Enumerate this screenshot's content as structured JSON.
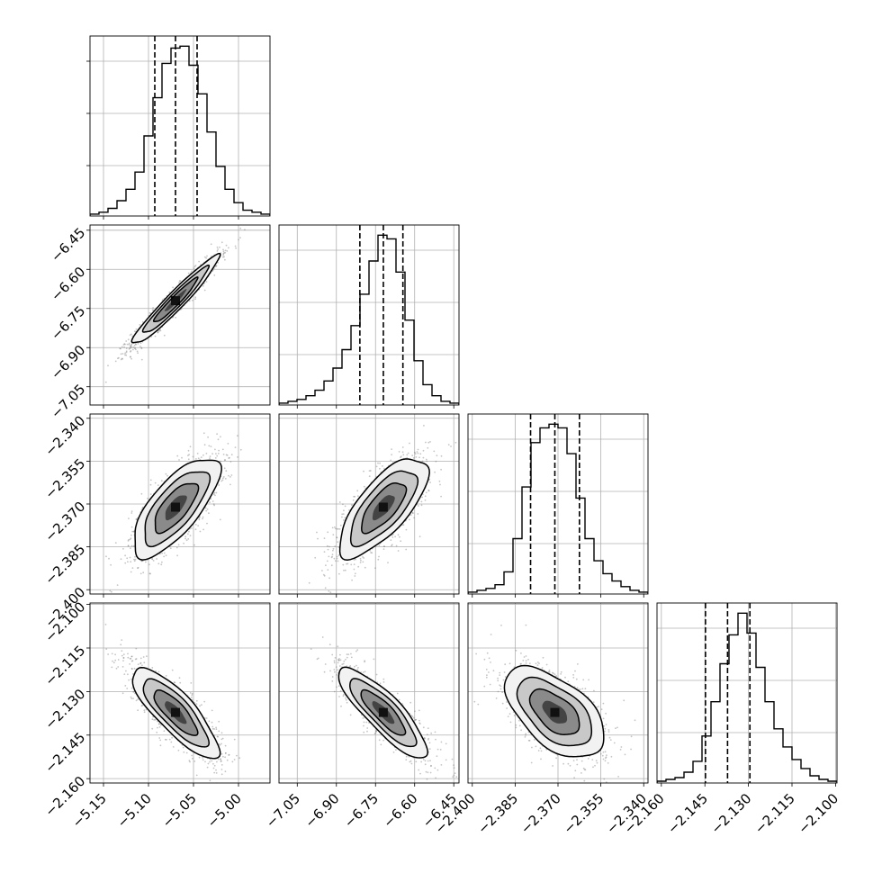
{
  "chart_data": {
    "type": "corner",
    "grid": true,
    "x_tick_labels": [
      [
        "−5.15",
        "−5.10",
        "−5.05",
        "−5.00"
      ],
      [
        "−7.05",
        "−6.90",
        "−6.75",
        "−6.60",
        "−6.45"
      ],
      [
        "−2.400",
        "−2.385",
        "−2.370",
        "−2.355",
        "−2.340"
      ],
      [
        "−2.160",
        "−2.145",
        "−2.130",
        "−2.115",
        "−2.100"
      ]
    ],
    "y_tick_labels": [
      [],
      [
        "−6.45",
        "−6.60",
        "−6.75",
        "−6.90",
        "−7.05"
      ],
      [
        "−2.340",
        "−2.355",
        "−2.370",
        "−2.385",
        "−2.400"
      ],
      [
        "−2.100",
        "−2.115",
        "−2.130",
        "−2.145",
        "−2.160"
      ]
    ],
    "params": [
      {
        "range": [
          -5.165,
          -4.965
        ],
        "ticks": [
          -5.15,
          -5.1,
          -5.05,
          -5.0
        ],
        "median": -5.07,
        "q16": -5.093,
        "q84": -5.046
      },
      {
        "range": [
          -7.12,
          -6.43
        ],
        "ticks": [
          -7.05,
          -6.9,
          -6.75,
          -6.6,
          -6.45
        ],
        "median": -6.72,
        "q16": -6.81,
        "q84": -6.645
      },
      {
        "range": [
          -2.4015,
          -2.3385
        ],
        "ticks": [
          -2.4,
          -2.385,
          -2.37,
          -2.355,
          -2.34
        ],
        "median": -2.3711,
        "q16": -2.3796,
        "q84": -2.3625
      },
      {
        "range": [
          -2.1615,
          -2.0995
        ],
        "ticks": [
          -2.16,
          -2.145,
          -2.13,
          -2.115,
          -2.1
        ],
        "median": -2.1372,
        "q16": -2.1448,
        "q84": -2.1295
      }
    ],
    "marginal_histograms": [
      [
        1,
        2,
        4,
        8,
        14,
        23,
        42,
        62,
        80,
        88,
        89,
        79,
        64,
        44,
        26,
        14,
        7,
        3,
        2,
        1
      ],
      [
        1,
        2,
        3,
        5,
        8,
        13,
        20,
        30,
        43,
        60,
        78,
        92,
        90,
        72,
        46,
        24,
        11,
        5,
        2,
        1
      ],
      [
        1,
        2,
        3,
        5,
        12,
        30,
        58,
        82,
        90,
        92,
        90,
        76,
        52,
        30,
        18,
        11,
        7,
        4,
        2,
        1
      ],
      [
        1,
        2,
        3,
        6,
        12,
        26,
        45,
        66,
        82,
        94,
        83,
        64,
        45,
        30,
        20,
        13,
        8,
        4,
        2,
        1
      ]
    ],
    "pairs": [
      {
        "row": 1,
        "col": 0,
        "mean": [
          -5.07,
          -6.72
        ],
        "sd": [
          0.024,
          0.085
        ],
        "corr": 0.96
      },
      {
        "row": 2,
        "col": 0,
        "mean": [
          -5.07,
          -2.3711
        ],
        "sd": [
          0.024,
          0.0087
        ],
        "corr": 0.72
      },
      {
        "row": 2,
        "col": 1,
        "mean": [
          -6.72,
          -2.3711
        ],
        "sd": [
          0.085,
          0.0087
        ],
        "corr": 0.72
      },
      {
        "row": 3,
        "col": 0,
        "mean": [
          -5.07,
          -2.1372
        ],
        "sd": [
          0.024,
          0.0078
        ],
        "corr": -0.82
      },
      {
        "row": 3,
        "col": 1,
        "mean": [
          -6.72,
          -2.1372
        ],
        "sd": [
          0.085,
          0.0078
        ],
        "corr": -0.85
      },
      {
        "row": 3,
        "col": 2,
        "mean": [
          -2.3711,
          -2.1372
        ],
        "sd": [
          0.0087,
          0.0078
        ],
        "corr": -0.55
      }
    ],
    "contour_levels": [
      0.5,
      1.0,
      1.5,
      2.0
    ]
  },
  "colors": {
    "line": "#000000",
    "grid": "#b0b0b0",
    "scatter": "#7f7f7f",
    "background": "#ffffff"
  }
}
